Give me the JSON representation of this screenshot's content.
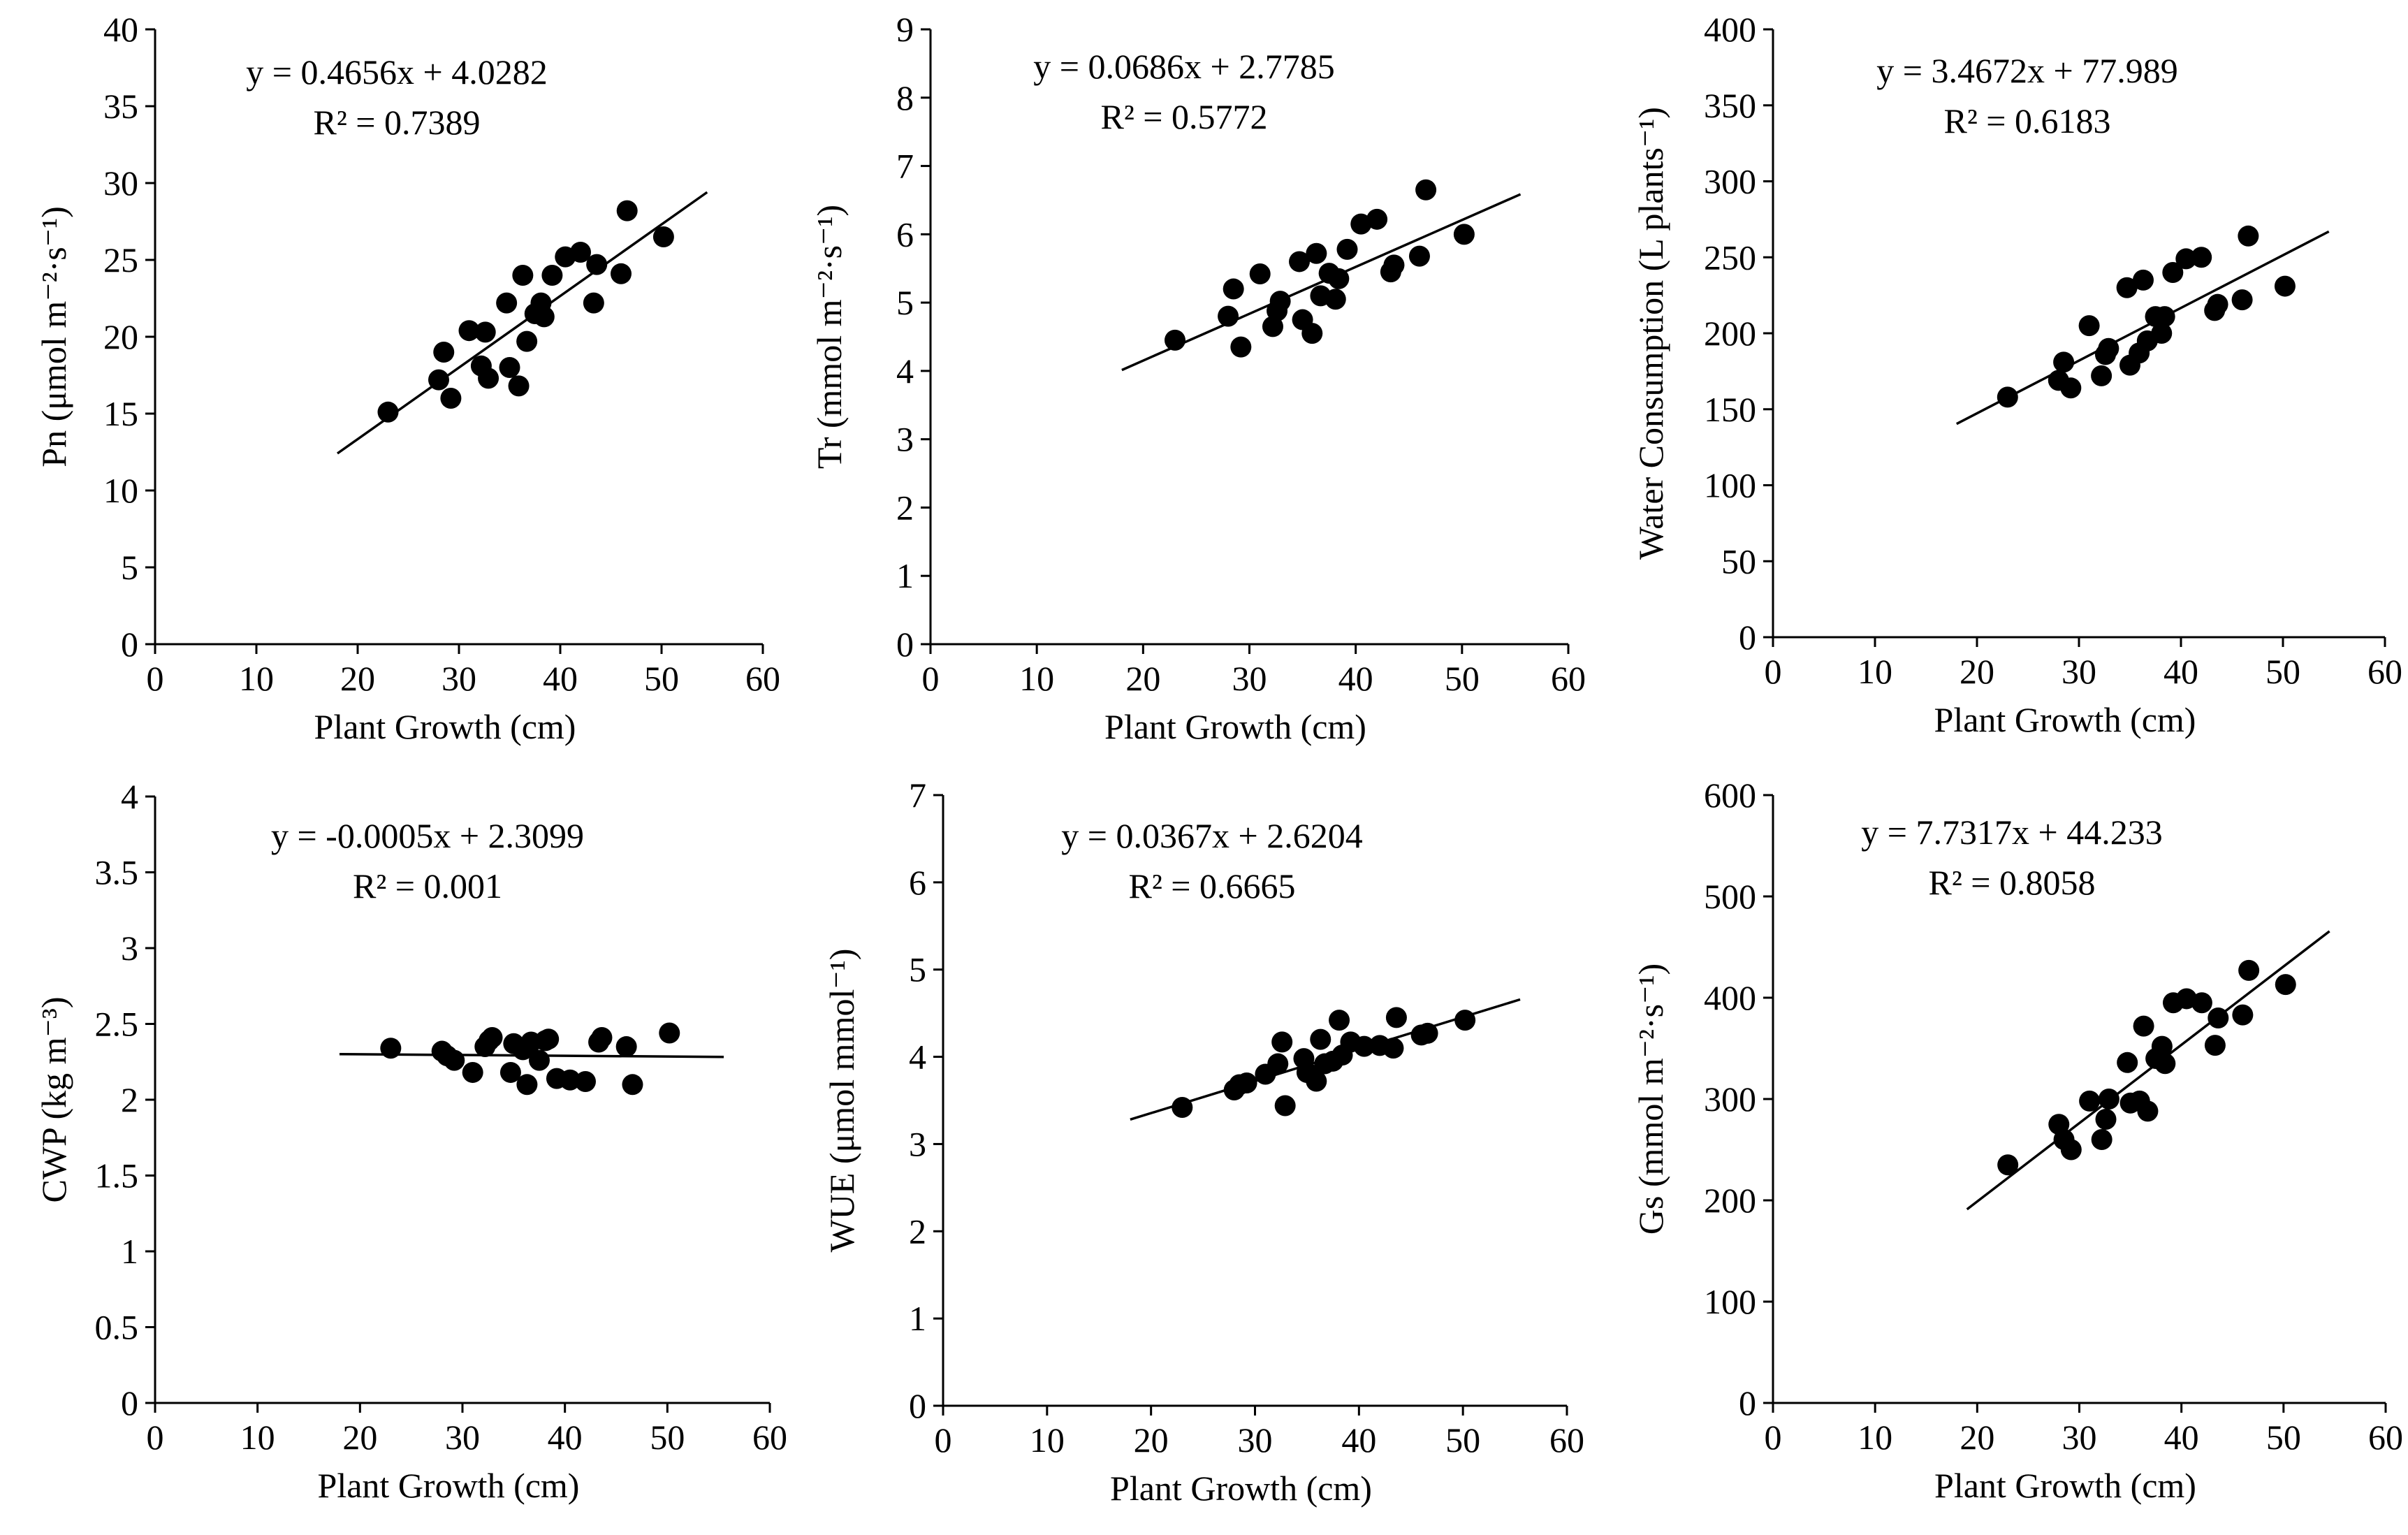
{
  "chart_data": [
    {
      "type": "scatter",
      "id": "pn",
      "xlabel": "Plant Growth (cm)",
      "ylabel": "Pn (μmol m⁻²·s⁻¹)",
      "xlim": [
        0,
        60
      ],
      "ylim": [
        0,
        40
      ],
      "xticks": [
        0,
        10,
        20,
        30,
        40,
        50,
        60
      ],
      "yticks": [
        0,
        5,
        10,
        15,
        20,
        25,
        30,
        35,
        40
      ],
      "equation": "y = 0.4656x + 4.0282",
      "r2": "R² = 0.7389",
      "trendline": {
        "slope": 0.4656,
        "intercept": 4.0282,
        "x_range": [
          18,
          54.5
        ]
      },
      "points": [
        [
          23,
          15.1
        ],
        [
          28,
          17.2
        ],
        [
          28.5,
          19
        ],
        [
          29.2,
          16
        ],
        [
          31,
          20.4
        ],
        [
          32.2,
          18.1
        ],
        [
          32.6,
          20.3
        ],
        [
          32.9,
          17.3
        ],
        [
          34.7,
          22.2
        ],
        [
          35,
          18
        ],
        [
          35.9,
          16.8
        ],
        [
          36.3,
          24
        ],
        [
          36.7,
          19.7
        ],
        [
          37.5,
          21.5
        ],
        [
          38.1,
          22.2
        ],
        [
          38.4,
          21.3
        ],
        [
          39.2,
          24
        ],
        [
          40.5,
          25.2
        ],
        [
          42,
          25.5
        ],
        [
          43.3,
          22.2
        ],
        [
          43.6,
          24.7
        ],
        [
          46,
          24.1
        ],
        [
          46.6,
          28.2
        ],
        [
          50.2,
          26.5
        ]
      ]
    },
    {
      "type": "scatter",
      "id": "tr",
      "xlabel": "Plant Growth (cm)",
      "ylabel": "Tr (mmol m⁻²·s⁻¹)",
      "xlim": [
        0,
        60
      ],
      "ylim": [
        0,
        9
      ],
      "xticks": [
        0,
        10,
        20,
        30,
        40,
        50,
        60
      ],
      "yticks": [
        0,
        1,
        2,
        3,
        4,
        5,
        6,
        7,
        8,
        9
      ],
      "equation": "y = 0.0686x + 2.7785",
      "r2": "R² = 0.5772",
      "trendline": {
        "slope": 0.0686,
        "intercept": 2.7785,
        "x_range": [
          18,
          55.5
        ]
      },
      "points": [
        [
          23,
          4.45
        ],
        [
          28,
          4.8
        ],
        [
          28.5,
          5.2
        ],
        [
          29.2,
          4.35
        ],
        [
          31,
          5.42
        ],
        [
          32.2,
          4.65
        ],
        [
          32.6,
          4.88
        ],
        [
          32.9,
          5.02
        ],
        [
          34.7,
          5.6
        ],
        [
          35,
          4.75
        ],
        [
          35.9,
          4.55
        ],
        [
          36.3,
          5.72
        ],
        [
          36.7,
          5.1
        ],
        [
          37.5,
          5.43
        ],
        [
          38.1,
          5.05
        ],
        [
          38.4,
          5.35
        ],
        [
          39.2,
          5.78
        ],
        [
          40.5,
          6.15
        ],
        [
          42,
          6.22
        ],
        [
          43.3,
          5.45
        ],
        [
          43.6,
          5.55
        ],
        [
          46,
          5.68
        ],
        [
          46.6,
          6.65
        ],
        [
          50.2,
          6
        ]
      ]
    },
    {
      "type": "scatter",
      "id": "water",
      "xlabel": "Plant Growth (cm)",
      "ylabel": "Water Consumption (L plants⁻¹)",
      "xlim": [
        0,
        60
      ],
      "ylim": [
        0,
        400
      ],
      "xticks": [
        0,
        10,
        20,
        30,
        40,
        50,
        60
      ],
      "yticks": [
        0,
        50,
        100,
        150,
        200,
        250,
        300,
        350,
        400
      ],
      "equation": "y = 3.4672x + 77.989",
      "r2": "R² = 0.6183",
      "trendline": {
        "slope": 3.4672,
        "intercept": 77.989,
        "x_range": [
          18,
          54.5
        ]
      },
      "points": [
        [
          23,
          158
        ],
        [
          28,
          169
        ],
        [
          28.5,
          181
        ],
        [
          29.2,
          164
        ],
        [
          31,
          205
        ],
        [
          32.2,
          172
        ],
        [
          32.6,
          186
        ],
        [
          32.9,
          190
        ],
        [
          34.7,
          230
        ],
        [
          35,
          179
        ],
        [
          35.9,
          187
        ],
        [
          36.3,
          235
        ],
        [
          36.7,
          195
        ],
        [
          37.5,
          211
        ],
        [
          38.1,
          200
        ],
        [
          38.4,
          211
        ],
        [
          39.2,
          240
        ],
        [
          40.5,
          249
        ],
        [
          42,
          250
        ],
        [
          43.3,
          215
        ],
        [
          43.6,
          219
        ],
        [
          46,
          222
        ],
        [
          46.6,
          264
        ],
        [
          50.2,
          231
        ]
      ]
    },
    {
      "type": "scatter",
      "id": "cwp",
      "xlabel": "Plant Growth (cm)",
      "ylabel": "CWP (kg m⁻³)",
      "xlim": [
        0,
        60
      ],
      "ylim": [
        0,
        4
      ],
      "xticks": [
        0,
        10,
        20,
        30,
        40,
        50,
        60
      ],
      "yticks": [
        0,
        0.5,
        1,
        1.5,
        2,
        2.5,
        3,
        3.5,
        4
      ],
      "equation": "y = -0.0005x + 2.3099",
      "r2": "R² = 0.001",
      "trendline": {
        "slope": -0.0005,
        "intercept": 2.3099,
        "x_range": [
          18,
          55.5
        ]
      },
      "points": [
        [
          23,
          2.34
        ],
        [
          28,
          2.32
        ],
        [
          28.5,
          2.29
        ],
        [
          29.2,
          2.26
        ],
        [
          31,
          2.18
        ],
        [
          32.2,
          2.35
        ],
        [
          32.6,
          2.39
        ],
        [
          32.9,
          2.41
        ],
        [
          34.7,
          2.18
        ],
        [
          35,
          2.37
        ],
        [
          35.9,
          2.33
        ],
        [
          36.3,
          2.1
        ],
        [
          36.7,
          2.38
        ],
        [
          37.5,
          2.26
        ],
        [
          38.1,
          2.39
        ],
        [
          38.4,
          2.4
        ],
        [
          39.2,
          2.14
        ],
        [
          40.5,
          2.13
        ],
        [
          42,
          2.12
        ],
        [
          43.3,
          2.38
        ],
        [
          43.6,
          2.41
        ],
        [
          46,
          2.35
        ],
        [
          46.6,
          2.1
        ],
        [
          50.2,
          2.44
        ]
      ]
    },
    {
      "type": "scatter",
      "id": "wue",
      "xlabel": "Plant Growth (cm)",
      "ylabel": "WUE (μmol mmol⁻¹)",
      "xlim": [
        0,
        60
      ],
      "ylim": [
        0,
        7
      ],
      "xticks": [
        0,
        10,
        20,
        30,
        40,
        50,
        60
      ],
      "yticks": [
        0,
        1,
        2,
        3,
        4,
        5,
        6,
        7
      ],
      "equation": "y = 0.0367x + 2.6204",
      "r2": "R² = 0.6665",
      "trendline": {
        "slope": 0.0367,
        "intercept": 2.6204,
        "x_range": [
          18,
          55.5
        ]
      },
      "points": [
        [
          23,
          3.42
        ],
        [
          28,
          3.62
        ],
        [
          28.5,
          3.68
        ],
        [
          29.2,
          3.7
        ],
        [
          31,
          3.8
        ],
        [
          32.2,
          3.92
        ],
        [
          32.6,
          4.17
        ],
        [
          32.9,
          3.44
        ],
        [
          34.7,
          3.98
        ],
        [
          35,
          3.82
        ],
        [
          35.9,
          3.72
        ],
        [
          36.3,
          4.2
        ],
        [
          36.7,
          3.92
        ],
        [
          37.5,
          3.95
        ],
        [
          38.1,
          4.42
        ],
        [
          38.4,
          4.02
        ],
        [
          39.2,
          4.17
        ],
        [
          40.5,
          4.12
        ],
        [
          42,
          4.13
        ],
        [
          43.3,
          4.1
        ],
        [
          43.6,
          4.45
        ],
        [
          46,
          4.25
        ],
        [
          46.6,
          4.27
        ],
        [
          50.2,
          4.42
        ]
      ]
    },
    {
      "type": "scatter",
      "id": "gs",
      "xlabel": "Plant Growth (cm)",
      "ylabel": "Gs (mmol m⁻²·s⁻¹)",
      "xlim": [
        0,
        60
      ],
      "ylim": [
        0,
        600
      ],
      "xticks": [
        0,
        10,
        20,
        30,
        40,
        50,
        60
      ],
      "yticks": [
        0,
        100,
        200,
        300,
        400,
        500,
        600
      ],
      "equation": "y = 7.7317x + 44.233",
      "r2": "R² = 0.8058",
      "trendline": {
        "slope": 7.7317,
        "intercept": 44.233,
        "x_range": [
          19,
          54.5
        ]
      },
      "points": [
        [
          23,
          235
        ],
        [
          28,
          275
        ],
        [
          28.5,
          260
        ],
        [
          29.2,
          250
        ],
        [
          31,
          298
        ],
        [
          32.2,
          260
        ],
        [
          32.6,
          280
        ],
        [
          32.9,
          300
        ],
        [
          34.7,
          336
        ],
        [
          35,
          296
        ],
        [
          35.9,
          298
        ],
        [
          36.3,
          372
        ],
        [
          36.7,
          288
        ],
        [
          37.5,
          340
        ],
        [
          38.1,
          352
        ],
        [
          38.4,
          335
        ],
        [
          39.2,
          395
        ],
        [
          40.5,
          399
        ],
        [
          42,
          395
        ],
        [
          43.3,
          353
        ],
        [
          43.6,
          380
        ],
        [
          46,
          383
        ],
        [
          46.6,
          427
        ],
        [
          50.2,
          413
        ]
      ]
    }
  ]
}
